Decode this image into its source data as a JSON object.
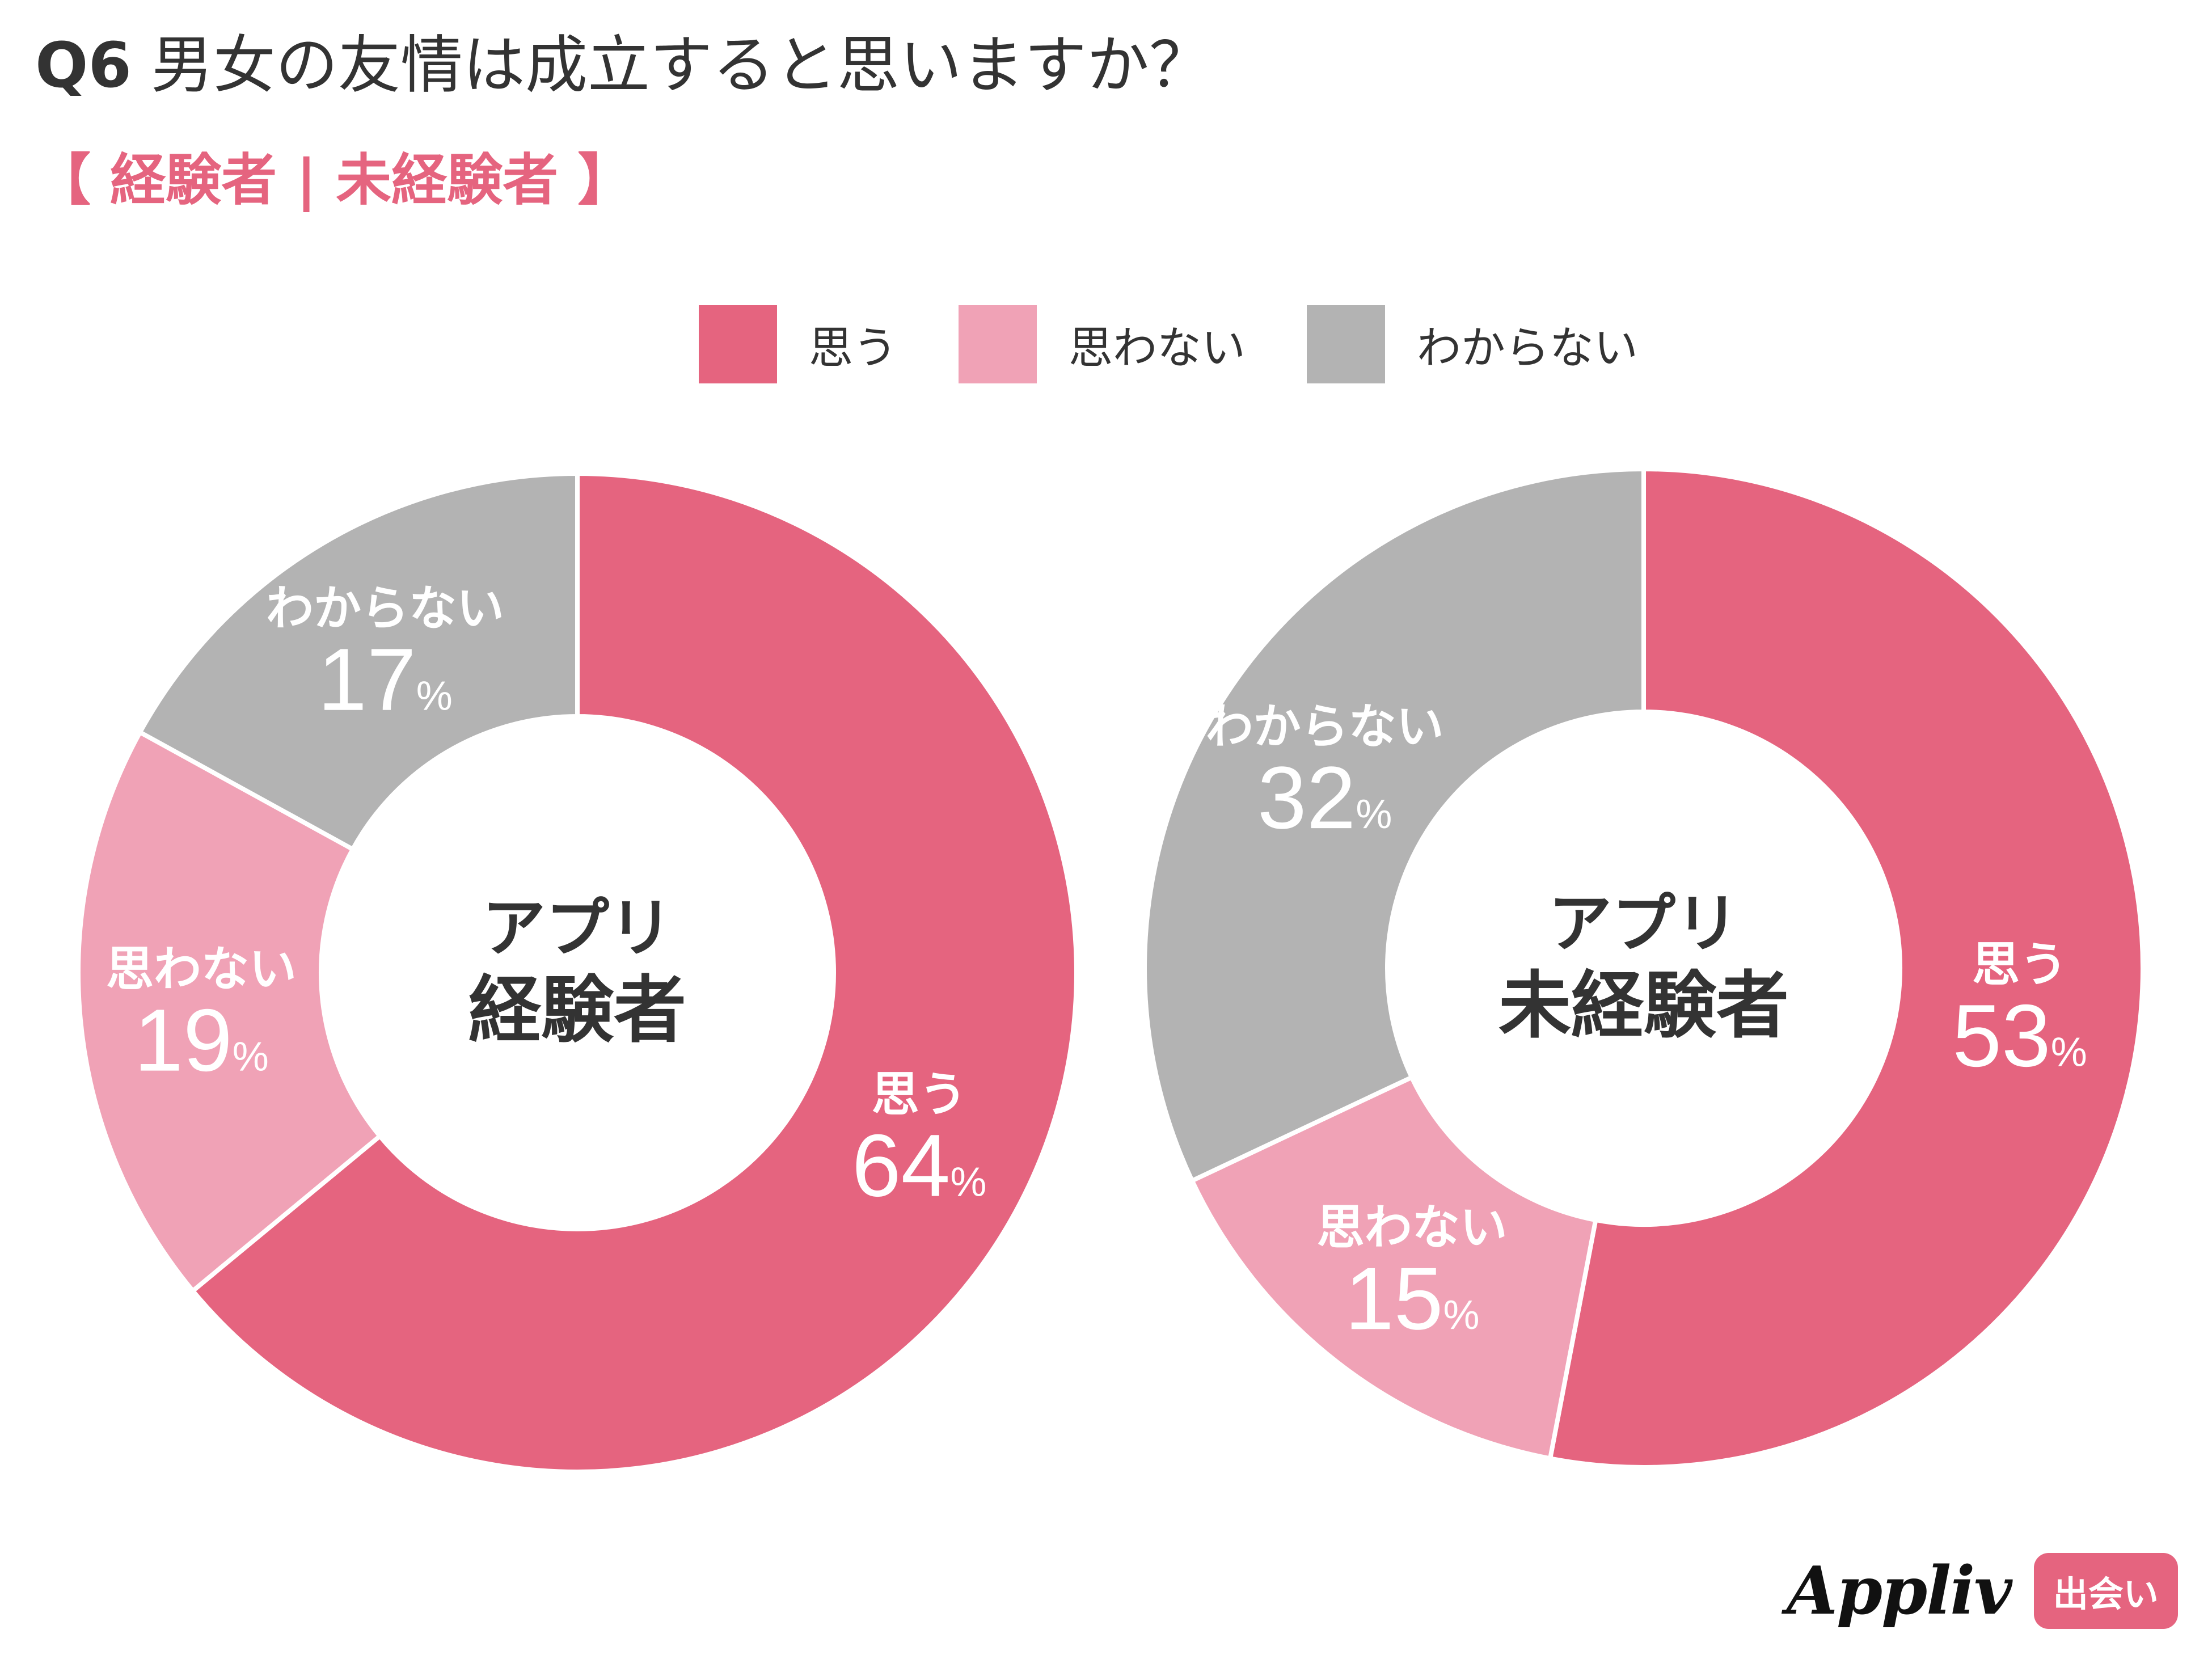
{
  "title": {
    "q": "Q6",
    "text": "男女の友情は成立すると思いますか？"
  },
  "subtitle": "【 経験者 | 未経験者 】",
  "colors": {
    "accent": "#e5647f",
    "yes": "#e5647f",
    "no": "#f0a2b6",
    "unknown": "#b3b3b3",
    "text_dark": "#333333",
    "text_white": "#ffffff"
  },
  "legend": [
    {
      "label": "思う",
      "color": "#e5647f"
    },
    {
      "label": "思わない",
      "color": "#f0a2b6"
    },
    {
      "label": "わからない",
      "color": "#b3b3b3"
    }
  ],
  "chart_data": [
    {
      "type": "pie",
      "variant": "donut",
      "center_label": [
        "アプリ",
        "経験者"
      ],
      "slices": [
        {
          "label": "思う",
          "value": 64,
          "display": "64",
          "unit": "%",
          "color": "#e5647f"
        },
        {
          "label": "思わない",
          "value": 19,
          "display": "19",
          "unit": "%",
          "color": "#f0a2b6"
        },
        {
          "label": "わからない",
          "value": 17,
          "display": "17",
          "unit": "%",
          "color": "#b3b3b3"
        }
      ]
    },
    {
      "type": "pie",
      "variant": "donut",
      "center_label": [
        "アプリ",
        "未経験者"
      ],
      "slices": [
        {
          "label": "思う",
          "value": 53,
          "display": "53",
          "unit": "%",
          "color": "#e5647f"
        },
        {
          "label": "思わない",
          "value": 15,
          "display": "15",
          "unit": "%",
          "color": "#f0a2b6"
        },
        {
          "label": "わからない",
          "value": 32,
          "display": "32",
          "unit": "%",
          "color": "#b3b3b3"
        }
      ]
    }
  ],
  "brand": {
    "logo": "Appliv",
    "badge": "出会い",
    "badge_color": "#e5647f"
  }
}
